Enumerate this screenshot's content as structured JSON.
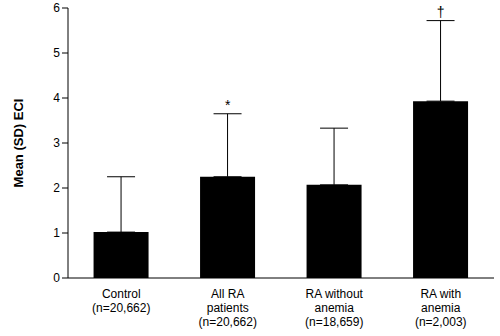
{
  "chart_data": {
    "type": "bar",
    "categories": [
      "Control\n(n=20,662)",
      "All RA\npatients\n(n=20,662)",
      "RA without\nanemia\n(n=18,659)",
      "RA with\nanemia\n(n=2,003)"
    ],
    "values": [
      1.02,
      2.25,
      2.07,
      3.93
    ],
    "sd": [
      1.23,
      1.4,
      1.26,
      1.79
    ],
    "color": "#000000",
    "ylabel": "Mean (SD) ECI",
    "ylim": [
      0,
      6
    ],
    "yticks": [
      0,
      1,
      2,
      3,
      4,
      5,
      6
    ],
    "grid": false,
    "annotations": [
      {
        "index": 1,
        "text": "*"
      },
      {
        "index": 3,
        "text": "†"
      }
    ]
  }
}
